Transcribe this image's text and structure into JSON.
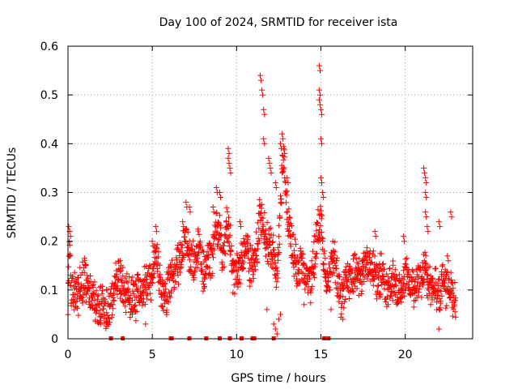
{
  "chart_data": {
    "type": "scatter",
    "title": "Day 100 of 2024, SRMTID for receiver ista",
    "xlabel": "GPS time / hours",
    "ylabel": "SRMTID / TECUs",
    "xlim": [
      0,
      24
    ],
    "ylim": [
      0,
      0.6
    ],
    "xticks": [
      "0",
      "5",
      "10",
      "15",
      "20"
    ],
    "xtick_values": [
      0,
      5,
      10,
      15,
      20
    ],
    "yticks": [
      "0",
      "0.1",
      "0.2",
      "0.3",
      "0.4",
      "0.5",
      "0.6"
    ],
    "ytick_values": [
      0,
      0.1,
      0.2,
      0.3,
      0.4,
      0.5,
      0.6
    ],
    "grid": true,
    "marker": "+",
    "color": "#ff0000",
    "series": [
      {
        "name": "SRMTID",
        "profile": [
          [
            0.0,
            0.095
          ],
          [
            0.1,
            0.19
          ],
          [
            0.2,
            0.09
          ],
          [
            0.4,
            0.1
          ],
          [
            0.6,
            0.09
          ],
          [
            0.8,
            0.11
          ],
          [
            1.0,
            0.12
          ],
          [
            1.2,
            0.1
          ],
          [
            1.4,
            0.085
          ],
          [
            1.6,
            0.075
          ],
          [
            1.8,
            0.06
          ],
          [
            2.0,
            0.07
          ],
          [
            2.2,
            0.055
          ],
          [
            2.4,
            0.06
          ],
          [
            2.6,
            0.08
          ],
          [
            2.8,
            0.11
          ],
          [
            3.0,
            0.13
          ],
          [
            3.2,
            0.12
          ],
          [
            3.4,
            0.1
          ],
          [
            3.6,
            0.09
          ],
          [
            3.8,
            0.08
          ],
          [
            4.0,
            0.085
          ],
          [
            4.2,
            0.09
          ],
          [
            4.4,
            0.1
          ],
          [
            4.6,
            0.11
          ],
          [
            4.8,
            0.12
          ],
          [
            5.0,
            0.13
          ],
          [
            5.2,
            0.18
          ],
          [
            5.4,
            0.14
          ],
          [
            5.6,
            0.09
          ],
          [
            5.8,
            0.08
          ],
          [
            6.0,
            0.11
          ],
          [
            6.2,
            0.13
          ],
          [
            6.4,
            0.15
          ],
          [
            6.6,
            0.16
          ],
          [
            6.8,
            0.19
          ],
          [
            7.0,
            0.21
          ],
          [
            7.2,
            0.17
          ],
          [
            7.4,
            0.15
          ],
          [
            7.6,
            0.17
          ],
          [
            7.8,
            0.19
          ],
          [
            8.0,
            0.13
          ],
          [
            8.2,
            0.16
          ],
          [
            8.4,
            0.16
          ],
          [
            8.6,
            0.17
          ],
          [
            8.8,
            0.23
          ],
          [
            9.0,
            0.22
          ],
          [
            9.2,
            0.16
          ],
          [
            9.4,
            0.24
          ],
          [
            9.6,
            0.21
          ],
          [
            9.8,
            0.13
          ],
          [
            10.0,
            0.14
          ],
          [
            10.2,
            0.15
          ],
          [
            10.4,
            0.18
          ],
          [
            10.6,
            0.19
          ],
          [
            10.8,
            0.15
          ],
          [
            11.0,
            0.16
          ],
          [
            11.2,
            0.19
          ],
          [
            11.4,
            0.26
          ],
          [
            11.6,
            0.22
          ],
          [
            11.8,
            0.2
          ],
          [
            12.0,
            0.19
          ],
          [
            12.2,
            0.17
          ],
          [
            12.4,
            0.12
          ],
          [
            12.6,
            0.28
          ],
          [
            12.8,
            0.38
          ],
          [
            13.0,
            0.26
          ],
          [
            13.2,
            0.2
          ],
          [
            13.4,
            0.17
          ],
          [
            13.6,
            0.15
          ],
          [
            13.8,
            0.15
          ],
          [
            14.0,
            0.14
          ],
          [
            14.2,
            0.12
          ],
          [
            14.4,
            0.11
          ],
          [
            14.6,
            0.17
          ],
          [
            14.8,
            0.22
          ],
          [
            15.0,
            0.24
          ],
          [
            15.2,
            0.16
          ],
          [
            15.4,
            0.11
          ],
          [
            15.6,
            0.15
          ],
          [
            15.8,
            0.16
          ],
          [
            16.0,
            0.12
          ],
          [
            16.2,
            0.08
          ],
          [
            16.4,
            0.11
          ],
          [
            16.6,
            0.13
          ],
          [
            16.8,
            0.12
          ],
          [
            17.0,
            0.14
          ],
          [
            17.2,
            0.13
          ],
          [
            17.4,
            0.12
          ],
          [
            17.6,
            0.15
          ],
          [
            17.8,
            0.14
          ],
          [
            18.0,
            0.15
          ],
          [
            18.2,
            0.13
          ],
          [
            18.4,
            0.12
          ],
          [
            18.6,
            0.14
          ],
          [
            18.8,
            0.11
          ],
          [
            19.0,
            0.1
          ],
          [
            19.2,
            0.12
          ],
          [
            19.4,
            0.11
          ],
          [
            19.6,
            0.1
          ],
          [
            19.8,
            0.09
          ],
          [
            20.0,
            0.13
          ],
          [
            20.2,
            0.12
          ],
          [
            20.4,
            0.11
          ],
          [
            20.6,
            0.1
          ],
          [
            20.8,
            0.12
          ],
          [
            21.0,
            0.13
          ],
          [
            21.2,
            0.14
          ],
          [
            21.4,
            0.11
          ],
          [
            21.6,
            0.09
          ],
          [
            21.8,
            0.1
          ],
          [
            22.0,
            0.08
          ],
          [
            22.2,
            0.12
          ],
          [
            22.4,
            0.11
          ],
          [
            22.6,
            0.1
          ],
          [
            22.8,
            0.09
          ],
          [
            23.0,
            0.07
          ]
        ],
        "spikes": [
          [
            0.05,
            0.23
          ],
          [
            0.1,
            0.22
          ],
          [
            1.0,
            0.16
          ],
          [
            3.1,
            0.16
          ],
          [
            5.0,
            0.2
          ],
          [
            5.2,
            0.23
          ],
          [
            6.8,
            0.24
          ],
          [
            7.0,
            0.28
          ],
          [
            7.2,
            0.27
          ],
          [
            8.6,
            0.27
          ],
          [
            8.8,
            0.31
          ],
          [
            9.0,
            0.3
          ],
          [
            9.5,
            0.39
          ],
          [
            9.5,
            0.37
          ],
          [
            9.6,
            0.35
          ],
          [
            10.2,
            0.24
          ],
          [
            11.4,
            0.54
          ],
          [
            11.5,
            0.51
          ],
          [
            11.6,
            0.47
          ],
          [
            11.6,
            0.41
          ],
          [
            11.9,
            0.37
          ],
          [
            12.0,
            0.35
          ],
          [
            12.3,
            0.32
          ],
          [
            12.6,
            0.4
          ],
          [
            12.7,
            0.42
          ],
          [
            12.8,
            0.39
          ],
          [
            13.0,
            0.33
          ],
          [
            14.9,
            0.56
          ],
          [
            14.9,
            0.51
          ],
          [
            14.9,
            0.49
          ],
          [
            15.0,
            0.47
          ],
          [
            15.0,
            0.41
          ],
          [
            15.0,
            0.33
          ],
          [
            15.1,
            0.3
          ],
          [
            18.2,
            0.22
          ],
          [
            19.9,
            0.21
          ],
          [
            21.1,
            0.35
          ],
          [
            21.2,
            0.33
          ],
          [
            21.2,
            0.3
          ],
          [
            21.2,
            0.26
          ],
          [
            21.3,
            0.23
          ],
          [
            22.7,
            0.26
          ],
          [
            22.5,
            0.17
          ],
          [
            22.0,
            0.24
          ]
        ],
        "dips": [
          [
            11.8,
            0.06
          ],
          [
            12.2,
            0.03
          ],
          [
            12.3,
            0.02
          ],
          [
            12.4,
            0.01
          ],
          [
            12.5,
            0.04
          ],
          [
            12.6,
            0.05
          ],
          [
            14.0,
            0.07
          ],
          [
            15.6,
            0.06
          ],
          [
            16.3,
            0.04
          ],
          [
            22.0,
            0.02
          ],
          [
            2.4,
            0.03
          ],
          [
            4.6,
            0.03
          ]
        ]
      }
    ],
    "zero_markers_x": [
      2.55,
      3.25,
      6.1,
      6.15,
      7.2,
      8.2,
      9.0,
      9.6,
      10.3,
      10.95,
      11.05,
      12.2,
      15.2,
      15.45
    ]
  }
}
